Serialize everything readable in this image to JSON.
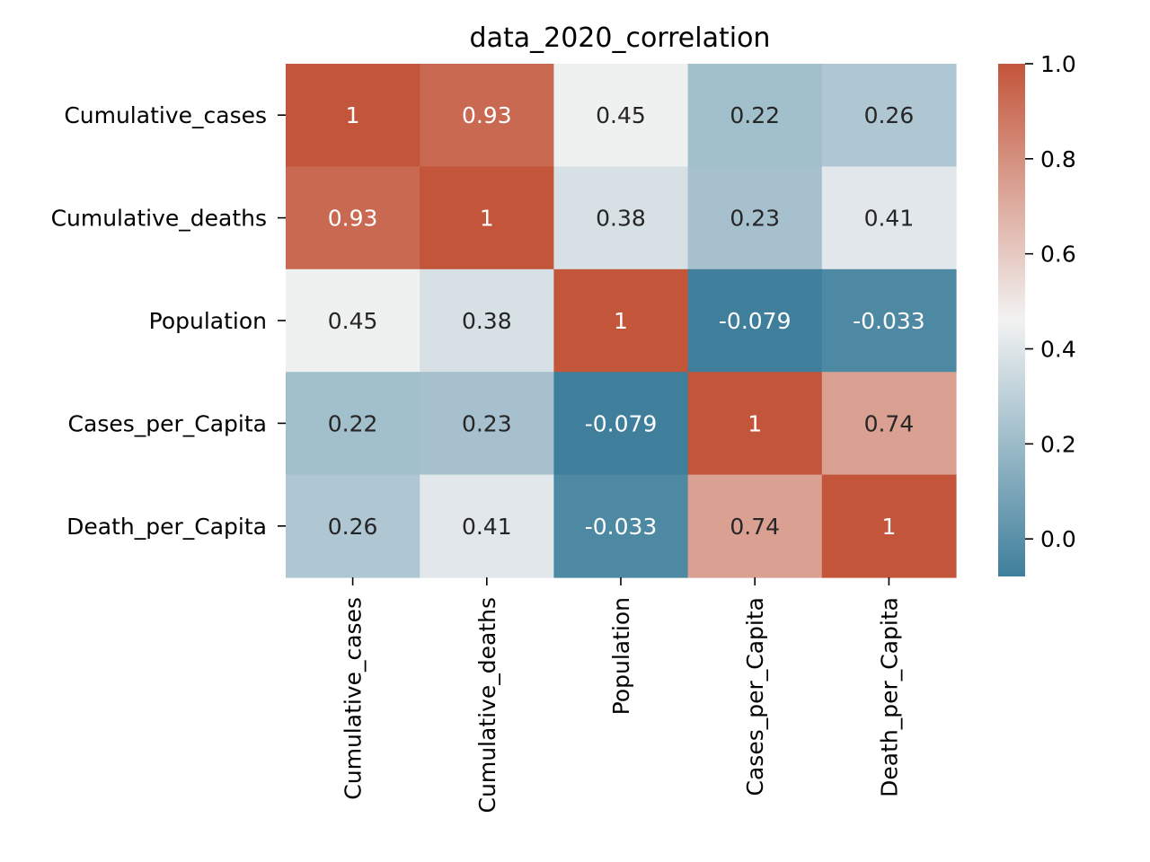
{
  "chart_data": {
    "type": "heatmap",
    "title": "data_2020_correlation",
    "xlabel": "",
    "ylabel": "",
    "x_categories": [
      "Cumulative_cases",
      "Cumulative_deaths",
      "Population",
      "Cases_per_Capita",
      "Death_per_Capita"
    ],
    "y_categories": [
      "Cumulative_cases",
      "Cumulative_deaths",
      "Population",
      "Cases_per_Capita",
      "Death_per_Capita"
    ],
    "values": [
      [
        1,
        0.93,
        0.45,
        0.22,
        0.26
      ],
      [
        0.93,
        1,
        0.38,
        0.23,
        0.41
      ],
      [
        0.45,
        0.38,
        1,
        -0.079,
        -0.033
      ],
      [
        0.22,
        0.23,
        -0.079,
        1,
        0.74
      ],
      [
        0.26,
        0.41,
        -0.033,
        0.74,
        1
      ]
    ],
    "cell_labels": [
      [
        "1",
        "0.93",
        "0.45",
        "0.22",
        "0.26"
      ],
      [
        "0.93",
        "1",
        "0.38",
        "0.23",
        "0.41"
      ],
      [
        "0.45",
        "0.38",
        "1",
        "-0.079",
        "-0.033"
      ],
      [
        "0.22",
        "0.23",
        "-0.079",
        "1",
        "0.74"
      ],
      [
        "0.26",
        "0.41",
        "-0.033",
        "0.74",
        "1"
      ]
    ],
    "colorbar": {
      "vmin": -0.079,
      "vmax": 1.0,
      "ticks": [
        0.0,
        0.2,
        0.4,
        0.6,
        0.8,
        1.0
      ],
      "tick_labels": [
        "0.0",
        "0.2",
        "0.4",
        "0.6",
        "0.8",
        "1.0"
      ]
    },
    "colormap": {
      "low": "#3f7f9c",
      "mid": "#f2f2f2",
      "high": "#c3553a"
    },
    "grid": false
  }
}
